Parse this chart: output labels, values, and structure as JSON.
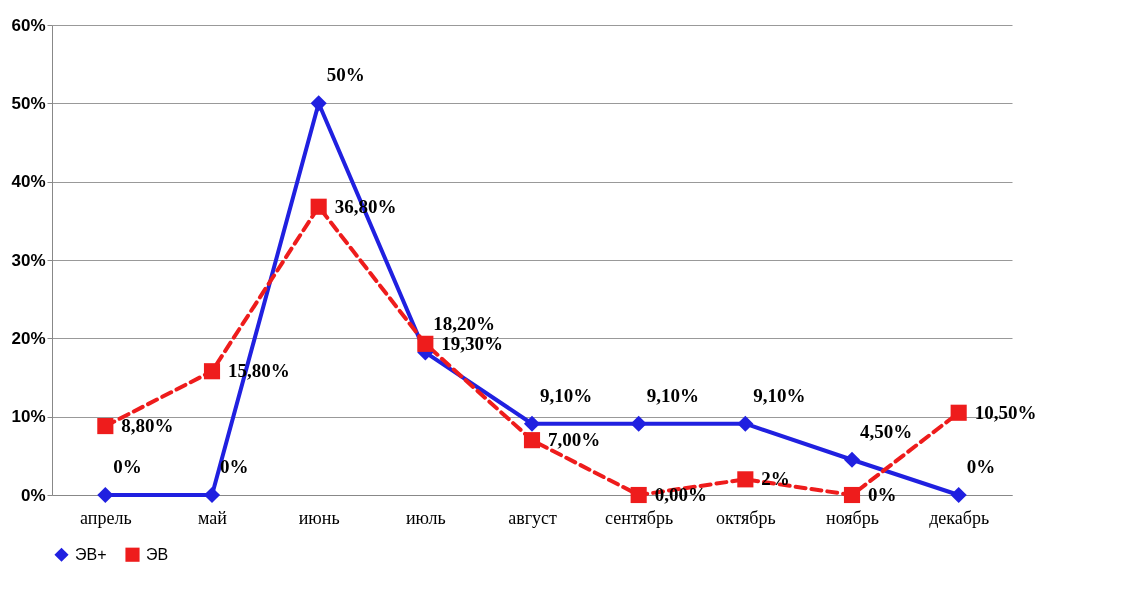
{
  "chart_data": {
    "type": "line",
    "categories": [
      "апрель",
      "май",
      "июнь",
      "июль",
      "август",
      "сентябрь",
      "октябрь",
      "ноябрь",
      "декабрь"
    ],
    "series": [
      {
        "name": "ЭВ+",
        "color": "#2020e0",
        "marker": "diamond",
        "line_style": "solid",
        "values": [
          0,
          0,
          50,
          18.2,
          9.1,
          9.1,
          9.1,
          4.5,
          0
        ],
        "value_labels": [
          "0%",
          "0%",
          "50%",
          "18,20%",
          "9,10%",
          "9,10%",
          "9,10%",
          "4,50%",
          "0%"
        ]
      },
      {
        "name": "ЭВ",
        "color": "#ee1c1c",
        "marker": "square",
        "line_style": "dashed",
        "values": [
          8.8,
          15.8,
          36.8,
          19.3,
          7.0,
          0.0,
          2,
          0,
          10.5
        ],
        "value_labels": [
          "8,80%",
          "15,80%",
          "36,80%",
          "19,30%",
          "7,00%",
          "0,00%",
          "2%",
          "0%",
          "10,50%"
        ]
      }
    ],
    "ylim": [
      0,
      60
    ],
    "yticks": [
      {
        "value": 0,
        "label": "0%"
      },
      {
        "value": 10,
        "label": "10%"
      },
      {
        "value": 20,
        "label": "20%"
      },
      {
        "value": 30,
        "label": "30%"
      },
      {
        "value": 40,
        "label": "40%"
      },
      {
        "value": 50,
        "label": "50%"
      },
      {
        "value": 60,
        "label": "60%"
      }
    ],
    "grid": "y",
    "legend": "bottom"
  }
}
